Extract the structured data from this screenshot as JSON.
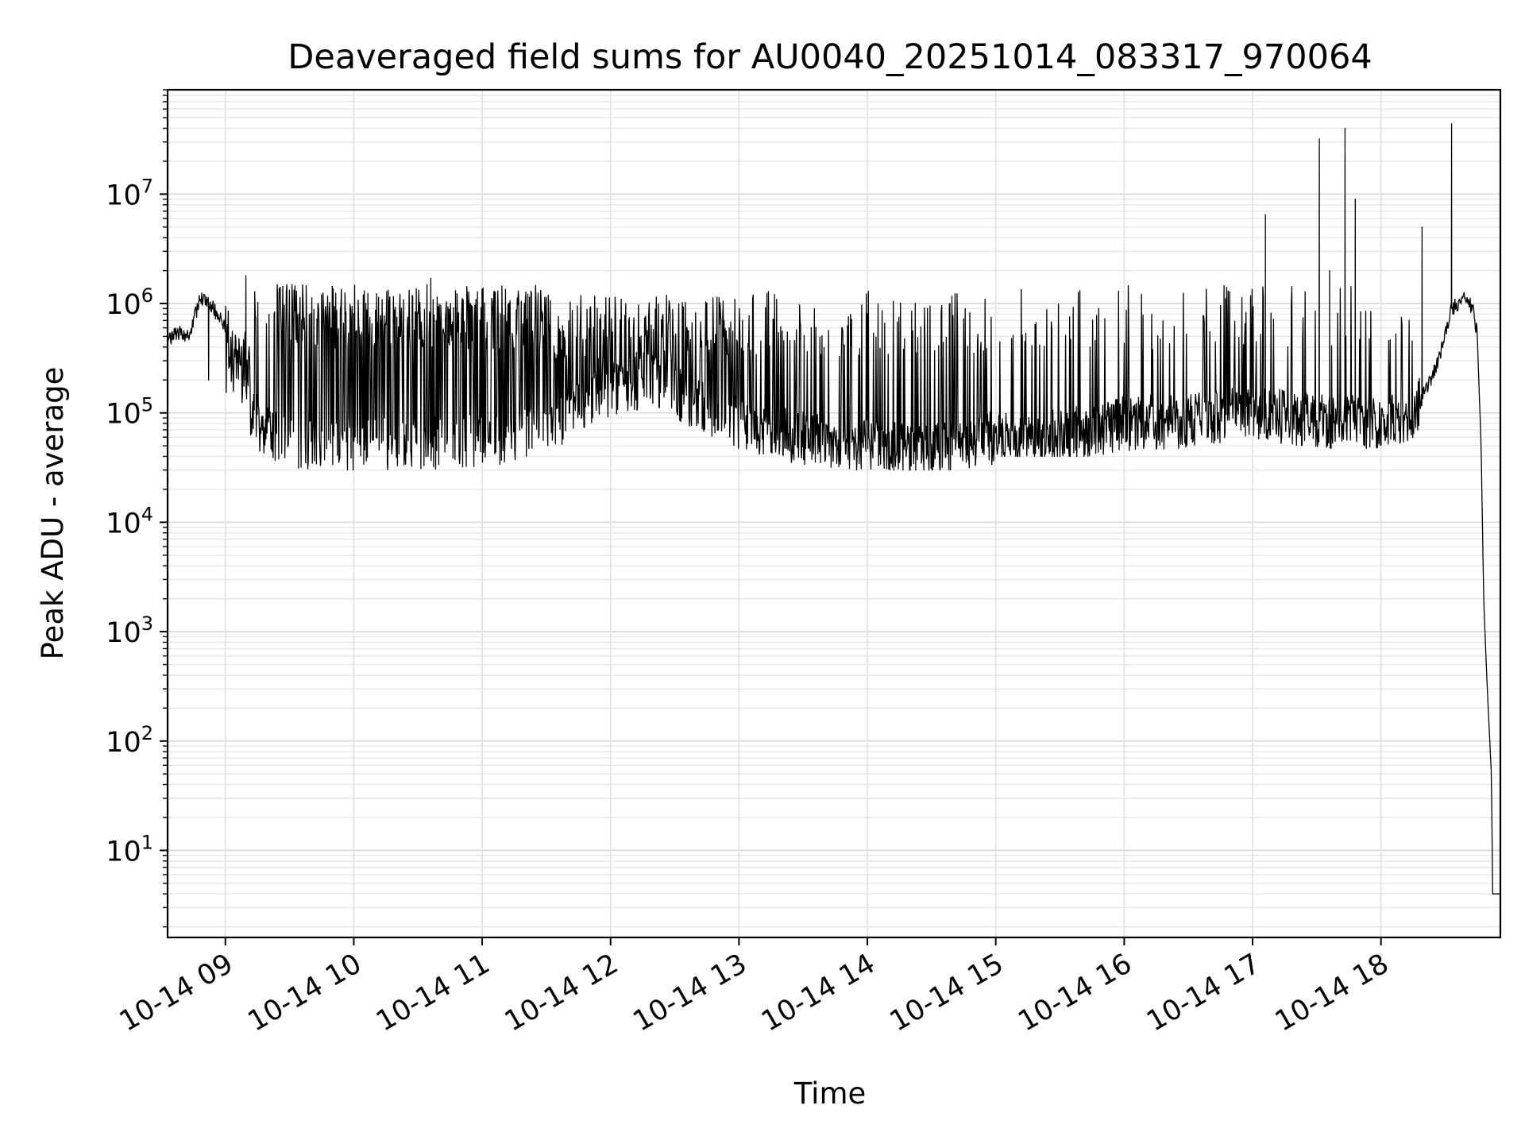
{
  "chart_data": {
    "type": "line",
    "title": "Deaveraged field sums for AU0040_20251014_083317_970064",
    "xlabel": "Time",
    "ylabel": "Peak ADU - average",
    "yscale": "log",
    "ylim": [
      1.6,
      90000000
    ],
    "xlim": [
      8.55,
      18.93
    ],
    "grid": true,
    "x_unit": "hour of day (2025-10-14)",
    "x_ticks": [
      9,
      10,
      11,
      12,
      13,
      14,
      15,
      16,
      17,
      18
    ],
    "x_tick_labels": [
      "10-14 09",
      "10-14 10",
      "10-14 11",
      "10-14 12",
      "10-14 13",
      "10-14 14",
      "10-14 15",
      "10-14 16",
      "10-14 17",
      "10-14 18"
    ],
    "y_ticks": [
      {
        "value": 10,
        "base": "10",
        "exp": "1"
      },
      {
        "value": 100,
        "base": "10",
        "exp": "2"
      },
      {
        "value": 1000,
        "base": "10",
        "exp": "3"
      },
      {
        "value": 10000,
        "base": "10",
        "exp": "4"
      },
      {
        "value": 100000,
        "base": "10",
        "exp": "5"
      },
      {
        "value": 1000000,
        "base": "10",
        "exp": "6"
      },
      {
        "value": 10000000,
        "base": "10",
        "exp": "7"
      }
    ],
    "line_color": "#000000",
    "series": [
      {
        "name": "Peak ADU - average",
        "baseline": [
          [
            8.55,
            450000
          ],
          [
            8.62,
            550000
          ],
          [
            8.72,
            520000
          ],
          [
            8.8,
            1100000
          ],
          [
            8.88,
            1000000
          ],
          [
            9.0,
            600000
          ],
          [
            9.1,
            300000
          ],
          [
            9.2,
            100000
          ],
          [
            9.35,
            60000
          ],
          [
            9.6,
            55000
          ],
          [
            10.0,
            50000
          ],
          [
            11.0,
            55000
          ],
          [
            11.5,
            70000
          ],
          [
            11.9,
            150000
          ],
          [
            12.3,
            200000
          ],
          [
            12.7,
            120000
          ],
          [
            13.0,
            80000
          ],
          [
            13.4,
            60000
          ],
          [
            14.0,
            50000
          ],
          [
            14.5,
            45000
          ],
          [
            15.0,
            60000
          ],
          [
            15.5,
            60000
          ],
          [
            16.0,
            80000
          ],
          [
            16.5,
            85000
          ],
          [
            17.0,
            100000
          ],
          [
            17.5,
            85000
          ],
          [
            18.0,
            80000
          ],
          [
            18.25,
            90000
          ],
          [
            18.45,
            300000
          ],
          [
            18.55,
            900000
          ],
          [
            18.65,
            1100000
          ],
          [
            18.72,
            900000
          ],
          [
            18.75,
            500000
          ],
          [
            18.78,
            50000
          ],
          [
            18.8,
            2000
          ],
          [
            18.82,
            500
          ],
          [
            18.84,
            150
          ],
          [
            18.86,
            50
          ],
          [
            18.87,
            4
          ],
          [
            18.93,
            4
          ]
        ],
        "spike_segments": [
          {
            "from": 9.0,
            "to": 9.2,
            "spike_rate": 0.6,
            "low": 40000,
            "high": 600000
          },
          {
            "from": 9.2,
            "to": 9.4,
            "spike_rate": 0.15,
            "low": 35000,
            "high": 1300000
          },
          {
            "from": 9.4,
            "to": 11.5,
            "spike_rate": 0.6,
            "low": 30000,
            "high": 1500000
          },
          {
            "from": 11.5,
            "to": 13.0,
            "spike_rate": 0.45,
            "low": 30000,
            "high": 1200000
          },
          {
            "from": 13.0,
            "to": 15.0,
            "spike_rate": 0.2,
            "low": 30000,
            "high": 1300000
          },
          {
            "from": 15.0,
            "to": 18.3,
            "spike_rate": 0.12,
            "low": 40000,
            "high": 1500000
          }
        ],
        "peaks": [
          {
            "x": 8.87,
            "y": 200000
          },
          {
            "x": 9.16,
            "y": 1800000
          },
          {
            "x": 10.6,
            "y": 1700000
          },
          {
            "x": 17.1,
            "y": 6500000
          },
          {
            "x": 17.52,
            "y": 32000000
          },
          {
            "x": 17.6,
            "y": 2000000
          },
          {
            "x": 17.72,
            "y": 40000000
          },
          {
            "x": 17.8,
            "y": 9000000
          },
          {
            "x": 18.32,
            "y": 5000000
          },
          {
            "x": 18.55,
            "y": 44000000
          }
        ]
      }
    ]
  }
}
